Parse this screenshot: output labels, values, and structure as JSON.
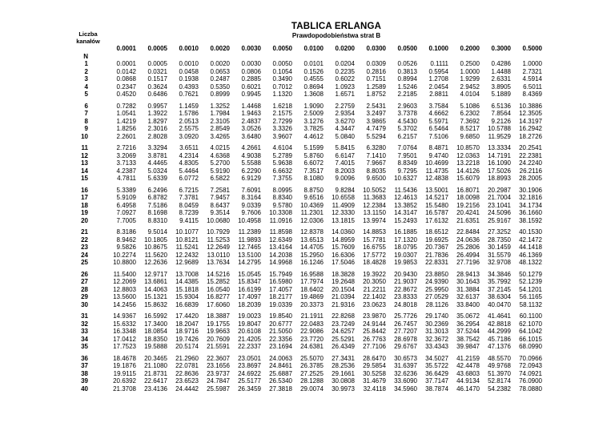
{
  "title": "TABLICA ERLANGA",
  "subtitle": "Prawdopodobieństwa strat B",
  "left_label_line1": "Liczba",
  "left_label_line2": "kanałów",
  "n_label": "N",
  "table": {
    "columns": [
      "0.0001",
      "0.0005",
      "0.0010",
      "0.0020",
      "0.0030",
      "0.0050",
      "0.0100",
      "0.0200",
      "0.0300",
      "0.0500",
      "0.1000",
      "0.2000",
      "0.3000",
      "0.5000"
    ],
    "rows": [
      {
        "n": "1",
        "values": [
          "0.0001",
          "0.0005",
          "0.0010",
          "0.0020",
          "0.0030",
          "0.0050",
          "0.0101",
          "0.0204",
          "0.0309",
          "0.0526",
          "0.1111",
          "0.2500",
          "0.4286",
          "1.0000"
        ]
      },
      {
        "n": "2",
        "values": [
          "0.0142",
          "0.0321",
          "0.0458",
          "0.0653",
          "0.0806",
          "0.1054",
          "0.1526",
          "0.2235",
          "0.2816",
          "0.3813",
          "0.5954",
          "1.0000",
          "1.4488",
          "2.7321"
        ]
      },
      {
        "n": "3",
        "values": [
          "0.0868",
          "0.1517",
          "0.1938",
          "0.2487",
          "0.2885",
          "0.3490",
          "0.4555",
          "0.6022",
          "0.7151",
          "0.8994",
          "1.2708",
          "1.9299",
          "2.6331",
          "4.5914"
        ]
      },
      {
        "n": "4",
        "values": [
          "0.2347",
          "0.3624",
          "0.4393",
          "0.5350",
          "0.6021",
          "0.7012",
          "0.8694",
          "1.0923",
          "1.2589",
          "1.5246",
          "2.0454",
          "2.9452",
          "3.8905",
          "6.5011"
        ]
      },
      {
        "n": "5",
        "values": [
          "0.4520",
          "0.6486",
          "0.7621",
          "0.8999",
          "0.9945",
          "1.1320",
          "1.3608",
          "1.6571",
          "1.8752",
          "2.2185",
          "2.8811",
          "4.0104",
          "5.1889",
          "8.4369"
        ]
      },
      {
        "n": "6",
        "values": [
          "0.7282",
          "0.9957",
          "1.1459",
          "1.3252",
          "1.4468",
          "1.6218",
          "1.9090",
          "2.2759",
          "2.5431",
          "2.9603",
          "3.7584",
          "5.1086",
          "6.5136",
          "10.3886"
        ]
      },
      {
        "n": "7",
        "values": [
          "1.0541",
          "1.3922",
          "1.5786",
          "1.7984",
          "1.9463",
          "2.1575",
          "2.5009",
          "2.9354",
          "3.2497",
          "3.7378",
          "4.6662",
          "6.2302",
          "7.8564",
          "12.3505"
        ]
      },
      {
        "n": "8",
        "values": [
          "1.4219",
          "1.8297",
          "2.0513",
          "2.3105",
          "2.4837",
          "2.7299",
          "3.1276",
          "3.6270",
          "3.9865",
          "4.5430",
          "5.5971",
          "7.3692",
          "9.2126",
          "14.3197"
        ]
      },
      {
        "n": "9",
        "values": [
          "1.8256",
          "2.3016",
          "2.5575",
          "2.8549",
          "3.0526",
          "3.3326",
          "3.7825",
          "4.3447",
          "4.7479",
          "5.3702",
          "6.5464",
          "8.5217",
          "10.5788",
          "16.2942"
        ]
      },
      {
        "n": "10",
        "values": [
          "2.2601",
          "2.8028",
          "3.0920",
          "3.4265",
          "3.6480",
          "3.9607",
          "4.4612",
          "5.0840",
          "5.5294",
          "6.2157",
          "7.5106",
          "9.6850",
          "11.9529",
          "18.2726"
        ]
      },
      {
        "n": "11",
        "values": [
          "2.7216",
          "3.3294",
          "3.6511",
          "4.0215",
          "4.2661",
          "4.6104",
          "5.1599",
          "5.8415",
          "6.3280",
          "7.0764",
          "8.4871",
          "10.8570",
          "13.3334",
          "20.2541"
        ]
      },
      {
        "n": "12",
        "values": [
          "3.2069",
          "3.8781",
          "4.2314",
          "4.6368",
          "4.9038",
          "5.2789",
          "5.8760",
          "6.6147",
          "7.1410",
          "7.9501",
          "9.4740",
          "12.0363",
          "14.7191",
          "22.2381"
        ]
      },
      {
        "n": "13",
        "values": [
          "3.7133",
          "4.4465",
          "4.8305",
          "5.2700",
          "5.5588",
          "5.9638",
          "6.6072",
          "7.4015",
          "7.9667",
          "8.8349",
          "10.4699",
          "13.2218",
          "16.1090",
          "24.2240"
        ]
      },
      {
        "n": "14",
        "values": [
          "4.2387",
          "5.0324",
          "5.4464",
          "5.9190",
          "6.2290",
          "6.6632",
          "7.3517",
          "8.2003",
          "8.8035",
          "9.7295",
          "11.4735",
          "14.4126",
          "17.5026",
          "26.2116"
        ]
      },
      {
        "n": "15",
        "values": [
          "4.7811",
          "5.6339",
          "6.0772",
          "6.5822",
          "6.9129",
          "7.3755",
          "8.1080",
          "9.0096",
          "9.6500",
          "10.6327",
          "12.4838",
          "15.6079",
          "18.8993",
          "28.2005"
        ]
      },
      {
        "n": "16",
        "values": [
          "5.3389",
          "6.2496",
          "6.7215",
          "7.2581",
          "7.6091",
          "8.0995",
          "8.8750",
          "9.8284",
          "10.5052",
          "11.5436",
          "13.5001",
          "16.8071",
          "20.2987",
          "30.1906"
        ]
      },
      {
        "n": "17",
        "values": [
          "5.9109",
          "6.8782",
          "7.3781",
          "7.9457",
          "8.3164",
          "8.8340",
          "9.6516",
          "10.6558",
          "11.3683",
          "12.4613",
          "14.5217",
          "18.0098",
          "21.7004",
          "32.1816"
        ]
      },
      {
        "n": "18",
        "values": [
          "6.4958",
          "7.5186",
          "8.0459",
          "8.6437",
          "9.0339",
          "9.5780",
          "10.4369",
          "11.4909",
          "12.2384",
          "13.3852",
          "15.5480",
          "19.2156",
          "23.1041",
          "34.1734"
        ]
      },
      {
        "n": "19",
        "values": [
          "7.0927",
          "8.1698",
          "8.7239",
          "9.3514",
          "9.7606",
          "10.3308",
          "11.2301",
          "12.3330",
          "13.1150",
          "14.3147",
          "16.5787",
          "20.4241",
          "24.5096",
          "36.1660"
        ]
      },
      {
        "n": "20",
        "values": [
          "7.7005",
          "8.8310",
          "9.4115",
          "10.0680",
          "10.4958",
          "11.0916",
          "12.0306",
          "13.1815",
          "13.9974",
          "15.2493",
          "17.6132",
          "21.6351",
          "25.9167",
          "38.1592"
        ]
      },
      {
        "n": "21",
        "values": [
          "8.3186",
          "9.5014",
          "10.1077",
          "10.7929",
          "11.2389",
          "11.8598",
          "12.8378",
          "14.0360",
          "14.8853",
          "16.1885",
          "18.6512",
          "22.8484",
          "27.3252",
          "40.1530"
        ]
      },
      {
        "n": "22",
        "values": [
          "8.9462",
          "10.1805",
          "10.8121",
          "11.5253",
          "11.9893",
          "12.6349",
          "13.6513",
          "14.8959",
          "15.7781",
          "17.1320",
          "19.6925",
          "24.0636",
          "28.7350",
          "42.1472"
        ]
      },
      {
        "n": "23",
        "values": [
          "9.5826",
          "10.8675",
          "11.5241",
          "12.2649",
          "12.7465",
          "13.4164",
          "14.4705",
          "15.7609",
          "16.6755",
          "18.0795",
          "20.7367",
          "25.2806",
          "30.1459",
          "44.1418"
        ]
      },
      {
        "n": "24",
        "values": [
          "10.2274",
          "11.5620",
          "12.2432",
          "13.0110",
          "13.5100",
          "14.2038",
          "15.2950",
          "16.6306",
          "17.5772",
          "19.0307",
          "21.7836",
          "26.4994",
          "31.5579",
          "46.1369"
        ]
      },
      {
        "n": "25",
        "values": [
          "10.8800",
          "12.2636",
          "12.9689",
          "13.7634",
          "14.2795",
          "14.9968",
          "16.1246",
          "17.5046",
          "18.4828",
          "19.9853",
          "22.8331",
          "27.7196",
          "32.9708",
          "48.1322"
        ]
      },
      {
        "n": "26",
        "values": [
          "11.5400",
          "12.9717",
          "13.7008",
          "14.5216",
          "15.0545",
          "15.7949",
          "16.9588",
          "18.3828",
          "19.3922",
          "20.9430",
          "23.8850",
          "28.9413",
          "34.3846",
          "50.1279"
        ]
      },
      {
        "n": "27",
        "values": [
          "12.2069",
          "13.6861",
          "14.4385",
          "15.2852",
          "15.8347",
          "16.5980",
          "17.7974",
          "19.2648",
          "20.3050",
          "21.9037",
          "24.9390",
          "30.1643",
          "35.7992",
          "52.1239"
        ]
      },
      {
        "n": "28",
        "values": [
          "12.8803",
          "14.4063",
          "15.1818",
          "16.0540",
          "16.6199",
          "17.4057",
          "18.6402",
          "20.1504",
          "21.2211",
          "22.8672",
          "25.9950",
          "31.3884",
          "37.2145",
          "54.1201"
        ]
      },
      {
        "n": "29",
        "values": [
          "13.5600",
          "15.1321",
          "15.9304",
          "16.8277",
          "17.4097",
          "18.2177",
          "19.4869",
          "21.0394",
          "22.1402",
          "23.8333",
          "27.0529",
          "32.6137",
          "38.6304",
          "56.1165"
        ]
      },
      {
        "n": "30",
        "values": [
          "14.2456",
          "15.8632",
          "16.6839",
          "17.6060",
          "18.2039",
          "19.0339",
          "20.3373",
          "21.9316",
          "23.0623",
          "24.8018",
          "28.1126",
          "33.8400",
          "40.0470",
          "58.1132"
        ]
      },
      {
        "n": "31",
        "values": [
          "14.9367",
          "16.5992",
          "17.4420",
          "18.3887",
          "19.0023",
          "19.8540",
          "21.1911",
          "22.8268",
          "23.9870",
          "25.7726",
          "29.1740",
          "35.0672",
          "41.4641",
          "60.1100"
        ]
      },
      {
        "n": "32",
        "values": [
          "15.6332",
          "17.3400",
          "18.2047",
          "19.1755",
          "19.8047",
          "20.6777",
          "22.0483",
          "23.7249",
          "24.9144",
          "26.7457",
          "30.2369",
          "36.2954",
          "42.8818",
          "62.1070"
        ]
      },
      {
        "n": "33",
        "values": [
          "16.3348",
          "18.0854",
          "18.9716",
          "19.9663",
          "20.6108",
          "21.5050",
          "22.9086",
          "24.6257",
          "25.8442",
          "27.7207",
          "31.3013",
          "37.5244",
          "44.2999",
          "64.1042"
        ]
      },
      {
        "n": "34",
        "values": [
          "17.0412",
          "18.8350",
          "19.7426",
          "20.7609",
          "21.4205",
          "22.3356",
          "23.7720",
          "25.5291",
          "26.7763",
          "28.6978",
          "32.3672",
          "38.7542",
          "45.7186",
          "66.1015"
        ]
      },
      {
        "n": "35",
        "values": [
          "17.7523",
          "19.5888",
          "20.5174",
          "21.5591",
          "22.2337",
          "23.1694",
          "24.6381",
          "26.4349",
          "27.7106",
          "29.6767",
          "33.4343",
          "39.9847",
          "47.1376",
          "68.0990"
        ]
      },
      {
        "n": "36",
        "values": [
          "18.4678",
          "20.3465",
          "21.2960",
          "22.3607",
          "23.0501",
          "24.0063",
          "25.5070",
          "27.3431",
          "28.6470",
          "30.6573",
          "34.5027",
          "41.2159",
          "48.5570",
          "70.0966"
        ]
      },
      {
        "n": "37",
        "values": [
          "19.1876",
          "21.1080",
          "22.0781",
          "23.1656",
          "23.8697",
          "24.8461",
          "26.3785",
          "28.2536",
          "29.5854",
          "31.6397",
          "35.5722",
          "42.4478",
          "49.9768",
          "72.0943"
        ]
      },
      {
        "n": "38",
        "values": [
          "19.9115",
          "21.8731",
          "22.8636",
          "23.9737",
          "24.6922",
          "25.6887",
          "27.2525",
          "29.1661",
          "30.5258",
          "32.6236",
          "36.6429",
          "43.6803",
          "51.3970",
          "74.0921"
        ]
      },
      {
        "n": "39",
        "values": [
          "20.6392",
          "22.6417",
          "23.6523",
          "24.7847",
          "25.5177",
          "26.5340",
          "28.1288",
          "30.0808",
          "31.4679",
          "33.6090",
          "37.7147",
          "44.9134",
          "52.8174",
          "76.0900"
        ]
      },
      {
        "n": "40",
        "values": [
          "21.3708",
          "23.4136",
          "24.4442",
          "25.5987",
          "26.3459",
          "27.3818",
          "29.0074",
          "30.9973",
          "32.4118",
          "34.5960",
          "38.7874",
          "46.1470",
          "54.2382",
          "78.0880"
        ]
      }
    ]
  }
}
